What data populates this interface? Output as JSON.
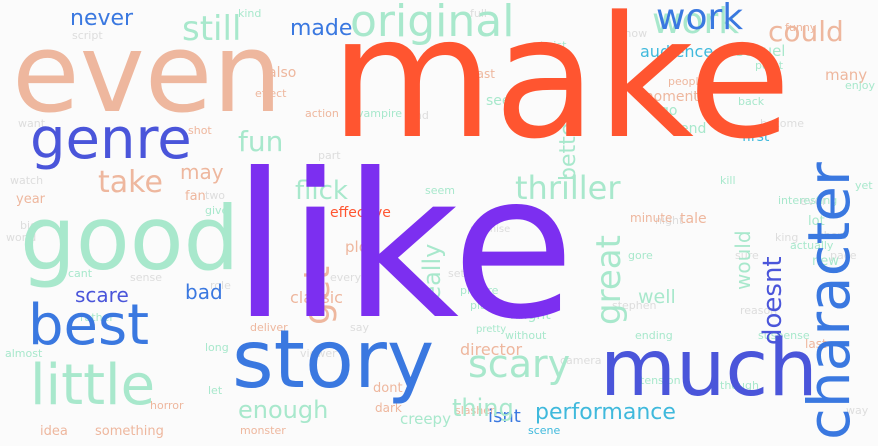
{
  "wordcloud": {
    "colors": {
      "orange_red": "#ff5530",
      "purple": "#7c2ff0",
      "blue": "#3a78e0",
      "indigo": "#4a55da",
      "mint": "#a8e8cc",
      "salmon": "#eeb79e",
      "teal": "#3fb9dc",
      "faint": "#dddddd"
    },
    "words": {
      "make": "make",
      "like": "like",
      "even": "even",
      "good": "good",
      "character": "character",
      "story": "story",
      "much": "much",
      "best": "best",
      "genre": "genre",
      "little": "little",
      "original": "original",
      "work": "work",
      "get": "get",
      "great": "great",
      "scary": "scary",
      "thriller": "thriller",
      "fun": "fun",
      "still": "still",
      "made": "made",
      "never": "never",
      "could": "could",
      "audience": "audience",
      "sequel": "sequel",
      "take": "take",
      "may": "may",
      "flick": "flick",
      "really": "really",
      "better": "better",
      "would": "would",
      "doesnt": "doesnt",
      "enough": "enough",
      "thing": "thing",
      "performance": "performance",
      "scare": "scare",
      "bad": "bad",
      "classic": "classic",
      "effective": "effective",
      "director": "director",
      "plot": "plot",
      "isnt": "isnt",
      "creepy": "creepy",
      "well": "well",
      "might": "might",
      "moment": "moment",
      "first": "first",
      "also": "also",
      "end": "end",
      "cast": "cast",
      "year": "year",
      "fan": "fan",
      "tale": "tale",
      "minute": "minute",
      "new": "new",
      "dont": "dont",
      "dark": "dark",
      "many": "many",
      "see": "see",
      "go": "go",
      "action": "action",
      "effect": "effect",
      "something": "something",
      "idea": "idea",
      "point": "point",
      "funny": "funny",
      "twist": "twist",
      "suspense": "suspense",
      "place": "place",
      "picture": "picture",
      "without": "without",
      "seem": "seem",
      "give": "give",
      "cant": "cant",
      "pretty": "pretty",
      "kill": "kill",
      "gore": "gore",
      "real": "real",
      "zombie": "zombie",
      "interesting": "interesting",
      "though": "though",
      "actually": "actually",
      "deliver": "deliver",
      "rather": "rather",
      "almost": "almost",
      "shot": "shot",
      "let": "let",
      "lot": "lot",
      "long": "long",
      "back": "back",
      "vampire": "vampire",
      "people": "people",
      "kind": "kind",
      "script": "script",
      "want": "want",
      "world": "world",
      "know": "know",
      "become": "become",
      "pace": "pace",
      "ever": "ever",
      "stephen": "stephen",
      "king": "king",
      "monster": "monster",
      "premise": "premise",
      "role": "role",
      "set": "set",
      "every": "every",
      "camera": "camera",
      "say": "say",
      "watch": "watch",
      "reason": "reason",
      "part": "part",
      "find": "find",
      "night": "night",
      "sense": "sense",
      "life": "life",
      "two": "two",
      "one": "one",
      "viewer": "viewer",
      "full": "full",
      "stylish": "stylish",
      "sure": "sure",
      "short": "short",
      "big": "big",
      "way": "way",
      "scene": "scene",
      "horror": "horror",
      "slasher": "slasher",
      "enjoy": "enjoy",
      "tension": "tension",
      "though2": "tense",
      "yet": "yet",
      "ending": "ending",
      "last": "last"
    }
  }
}
